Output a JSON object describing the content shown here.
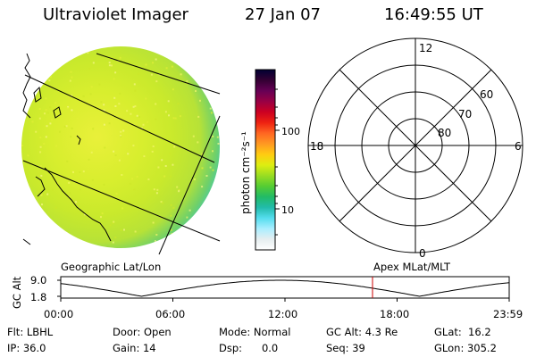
{
  "header": {
    "instrument": "Ultraviolet Imager",
    "date": "27 Jan 07",
    "time": "16:49:55 UT"
  },
  "colorbar": {
    "unit_label": "photon cm⁻²s⁻¹",
    "ticks": [
      "100",
      "10"
    ],
    "colors": [
      "#000033",
      "#330033",
      "#660055",
      "#990044",
      "#cc0022",
      "#ee2211",
      "#ff6622",
      "#ff9922",
      "#ffcc11",
      "#ddee11",
      "#99dd22",
      "#55cc33",
      "#22bb66",
      "#22bbaa",
      "#55ddee",
      "#aaeeff",
      "#e6eef0",
      "#ffffff"
    ]
  },
  "image_panel": {
    "fill_colors": [
      "#e9f03a",
      "#d8ee2e",
      "#c9e92c",
      "#b7e237",
      "#6fd06a",
      "#46c9a7"
    ]
  },
  "polar_plot": {
    "mlt_labels": [
      "12",
      "18",
      "6",
      "0"
    ],
    "lat_labels": [
      "60",
      "70",
      "80"
    ]
  },
  "timeline": {
    "left_label": "Geographic Lat/Lon",
    "right_label": "Apex MLat/MLT",
    "y_axis_label": "GC Alt",
    "y_ticks": [
      "9.0",
      "1.8"
    ],
    "x_ticks": [
      "00:00",
      "06:00",
      "12:00",
      "18:00",
      "23:59"
    ],
    "current_time_marker": "16:49:55",
    "marker_color": "#cc0000"
  },
  "status": {
    "filter": "Flt: LBHL",
    "door": "Door: Open",
    "mode": "Mode: Normal",
    "gc_alt": "GC Alt: 4.3 Re",
    "glat": "GLat:  16.2",
    "ip": "IP: 36.0",
    "gain": "Gain: 14",
    "dsp": "Dsp:      0.0",
    "seq": "Seq: 39",
    "glon": "GLon: 305.2"
  }
}
